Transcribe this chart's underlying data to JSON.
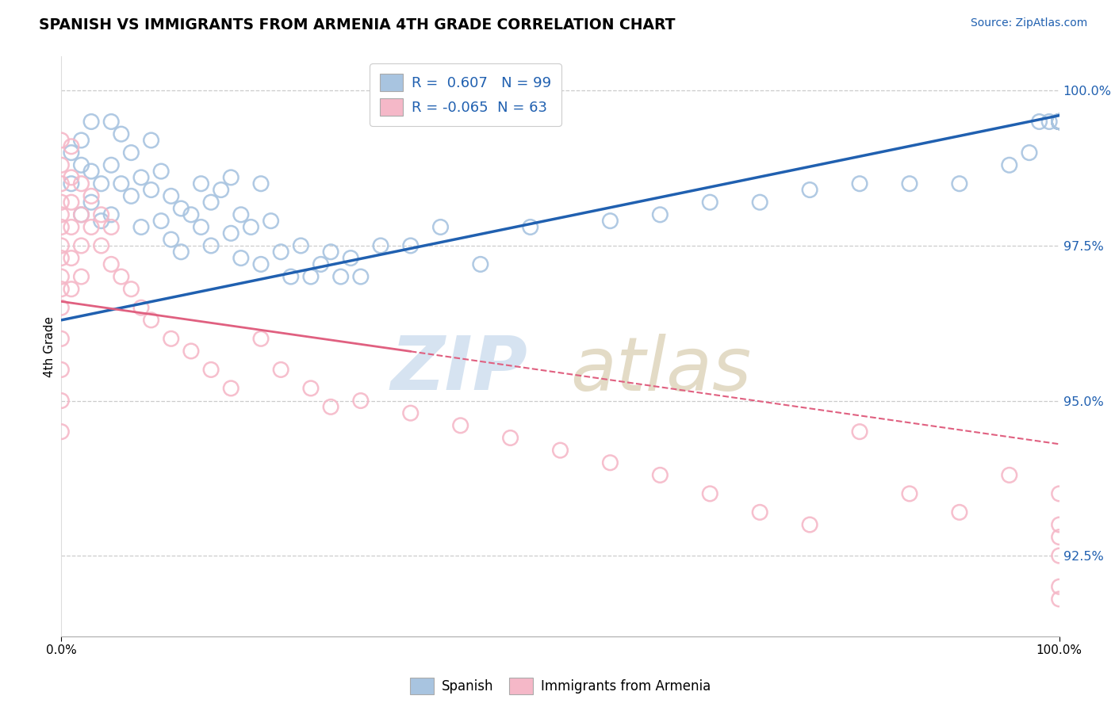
{
  "title": "SPANISH VS IMMIGRANTS FROM ARMENIA 4TH GRADE CORRELATION CHART",
  "source": "Source: ZipAtlas.com",
  "ylabel": "4th Grade",
  "xmin": 0.0,
  "xmax": 100.0,
  "ymin": 91.2,
  "ymax": 100.55,
  "yticks": [
    92.5,
    95.0,
    97.5,
    100.0
  ],
  "ytick_labels": [
    "92.5%",
    "95.0%",
    "97.5%",
    "100.0%"
  ],
  "blue_R": 0.607,
  "blue_N": 99,
  "pink_R": -0.065,
  "pink_N": 63,
  "blue_color": "#a8c4e0",
  "pink_color": "#f5b8c8",
  "blue_line_color": "#2060b0",
  "pink_line_color": "#e06080",
  "legend_label_blue": "Spanish",
  "legend_label_pink": "Immigrants from Armenia",
  "blue_line_y0": 96.3,
  "blue_line_y1": 99.6,
  "pink_line_y0": 96.6,
  "pink_line_y1": 94.3,
  "pink_solid_end_x": 35,
  "blue_scatter_x": [
    1,
    1,
    2,
    2,
    2,
    3,
    3,
    3,
    4,
    4,
    5,
    5,
    5,
    6,
    6,
    7,
    7,
    8,
    8,
    9,
    9,
    10,
    10,
    11,
    11,
    12,
    12,
    13,
    14,
    14,
    15,
    15,
    16,
    17,
    17,
    18,
    18,
    19,
    20,
    20,
    21,
    22,
    23,
    24,
    25,
    26,
    27,
    28,
    29,
    30,
    32,
    35,
    38,
    42,
    47,
    55,
    60,
    65,
    70,
    75,
    80,
    85,
    90,
    95,
    97,
    98,
    99,
    100,
    100,
    100,
    100,
    100,
    100,
    100,
    100,
    100,
    100,
    100,
    100,
    100,
    100,
    100,
    100,
    100,
    100,
    100,
    100,
    100,
    100,
    100,
    100,
    100,
    100,
    100,
    100,
    100,
    100,
    100,
    100
  ],
  "blue_scatter_y": [
    99.0,
    98.5,
    98.8,
    99.2,
    98.0,
    99.5,
    98.7,
    98.2,
    98.5,
    97.9,
    99.5,
    98.8,
    98.0,
    99.3,
    98.5,
    99.0,
    98.3,
    98.6,
    97.8,
    99.2,
    98.4,
    98.7,
    97.9,
    98.3,
    97.6,
    98.1,
    97.4,
    98.0,
    97.8,
    98.5,
    98.2,
    97.5,
    98.4,
    97.7,
    98.6,
    98.0,
    97.3,
    97.8,
    98.5,
    97.2,
    97.9,
    97.4,
    97.0,
    97.5,
    97.0,
    97.2,
    97.4,
    97.0,
    97.3,
    97.0,
    97.5,
    97.5,
    97.8,
    97.2,
    97.8,
    97.9,
    98.0,
    98.2,
    98.2,
    98.4,
    98.5,
    98.5,
    98.5,
    98.8,
    99.0,
    99.5,
    99.5,
    99.5,
    99.5,
    99.5,
    99.5,
    99.5,
    99.5,
    99.5,
    99.5,
    99.5,
    99.5,
    99.5,
    99.5,
    99.5,
    99.5,
    99.5,
    99.5,
    99.5,
    99.5,
    99.5,
    99.5,
    99.5,
    99.5,
    99.5,
    99.5,
    99.5,
    99.5,
    99.5,
    99.5,
    99.5,
    99.5,
    99.5,
    99.5
  ],
  "pink_scatter_x": [
    0,
    0,
    0,
    0,
    0,
    0,
    0,
    0,
    0,
    0,
    0,
    0,
    0,
    0,
    0,
    1,
    1,
    1,
    1,
    1,
    1,
    2,
    2,
    2,
    2,
    3,
    3,
    4,
    4,
    5,
    5,
    6,
    7,
    8,
    9,
    11,
    13,
    15,
    17,
    20,
    22,
    25,
    27,
    30,
    35,
    40,
    45,
    50,
    55,
    60,
    65,
    70,
    75,
    80,
    85,
    90,
    95,
    100,
    100,
    100,
    100,
    100,
    100
  ],
  "pink_scatter_y": [
    99.2,
    98.8,
    98.5,
    98.2,
    98.0,
    97.8,
    97.5,
    97.3,
    97.0,
    96.8,
    96.5,
    96.0,
    95.5,
    95.0,
    94.5,
    99.1,
    98.6,
    98.2,
    97.8,
    97.3,
    96.8,
    98.5,
    98.0,
    97.5,
    97.0,
    98.3,
    97.8,
    98.0,
    97.5,
    97.8,
    97.2,
    97.0,
    96.8,
    96.5,
    96.3,
    96.0,
    95.8,
    95.5,
    95.2,
    96.0,
    95.5,
    95.2,
    94.9,
    95.0,
    94.8,
    94.6,
    94.4,
    94.2,
    94.0,
    93.8,
    93.5,
    93.2,
    93.0,
    94.5,
    93.5,
    93.2,
    93.8,
    91.8,
    92.0,
    92.5,
    92.8,
    93.0,
    93.5
  ]
}
